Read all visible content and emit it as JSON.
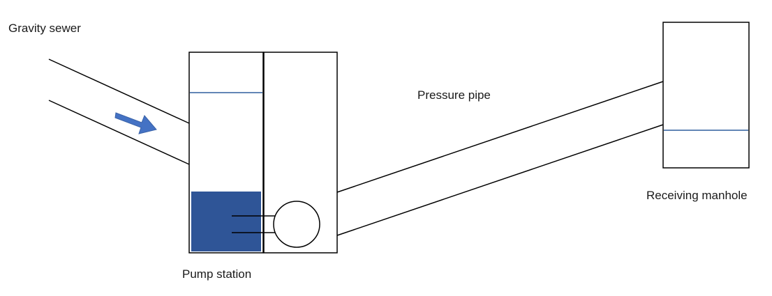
{
  "labels": {
    "gravity_sewer": "Gravity sewer",
    "pressure_pipe": "Pressure pipe",
    "receiving_manhole": "Receiving manhole",
    "pump_station": "Pump station"
  },
  "colors": {
    "line": "#000000",
    "water_level": "#2e5f9e",
    "wet_well_water": "#2f5597",
    "flow_arrow": "#4472c4"
  },
  "icons": {
    "flow_arrow": "flow-direction-arrow-icon",
    "pump": "pump-circle-icon"
  }
}
